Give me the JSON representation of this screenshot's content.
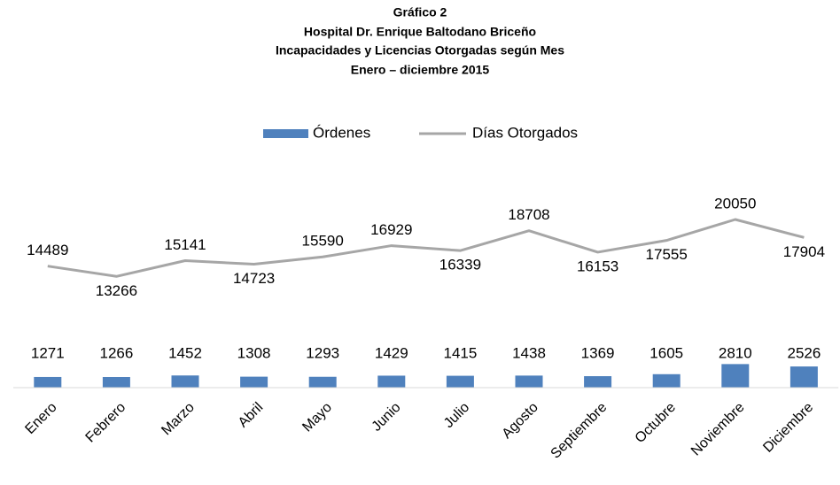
{
  "chart_data": {
    "type": "combo",
    "title": [
      "Gráfico 2",
      "Hospital Dr. Enrique Baltodano Briceño",
      "Incapacidades y Licencias Otorgadas según Mes",
      "Enero – diciembre 2015"
    ],
    "categories": [
      "Enero",
      "Febrero",
      "Marzo",
      "Abril",
      "Mayo",
      "Junio",
      "Julio",
      "Agosto",
      "Septiembre",
      "Octubre",
      "Noviembre",
      "Diciembre"
    ],
    "series": [
      {
        "name": "Órdenes",
        "type": "bar",
        "color": "#4f81bd",
        "values": [
          1271,
          1266,
          1452,
          1308,
          1293,
          1429,
          1415,
          1438,
          1369,
          1605,
          2810,
          2526
        ]
      },
      {
        "name": "Días Otorgados",
        "type": "line",
        "color": "#a6a6a6",
        "values": [
          14489,
          13266,
          15141,
          14723,
          15590,
          16929,
          16339,
          18708,
          16153,
          17555,
          20050,
          17904
        ]
      }
    ],
    "legend": "top"
  }
}
